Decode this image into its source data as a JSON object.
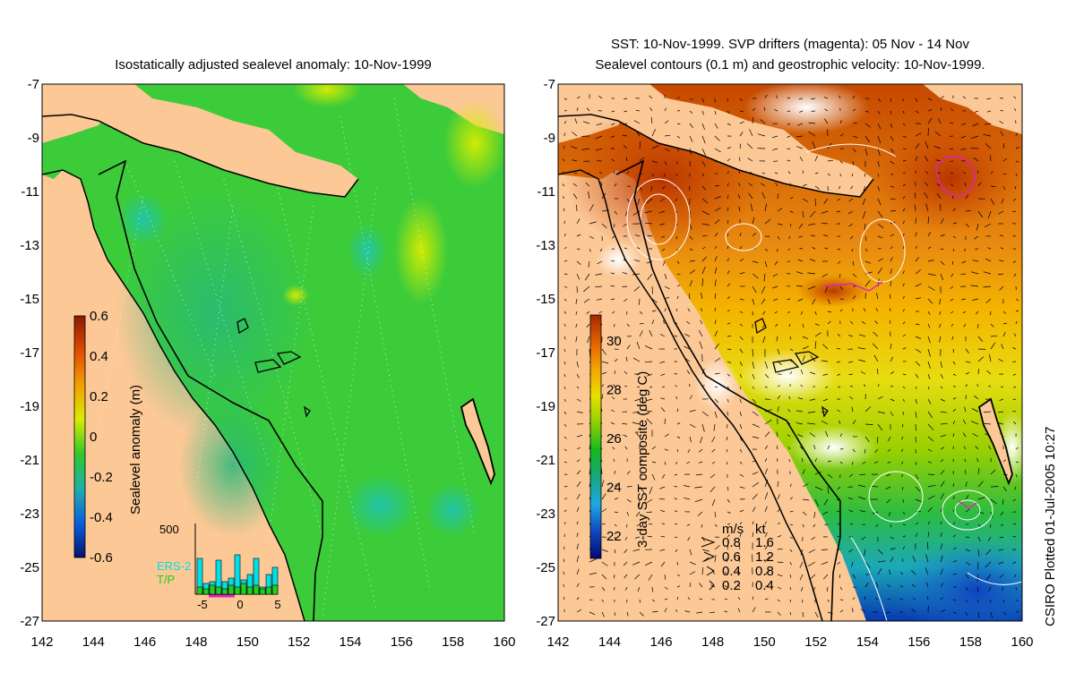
{
  "left_panel": {
    "title": "Isostatically adjusted sealevel anomaly: 10-Nov-1999",
    "colorbar": {
      "label": "Sealevel anomaly (m)",
      "ticks": [
        "0.6",
        "0.4",
        "0.2",
        "0",
        "-0.2",
        "-0.4",
        "-0.6"
      ],
      "colors": [
        "#8b1a00",
        "#e04a00",
        "#f3a000",
        "#d8ec00",
        "#2ec92a",
        "#1fb0a8",
        "#0c5fe0",
        "#00136e"
      ]
    },
    "histogram": {
      "ymax_label": "500",
      "x_ticks": [
        "-5",
        "0",
        "5"
      ],
      "legend_ers": "ERS-2",
      "legend_tp": "T/P",
      "ers_color": "#00e0e8",
      "tp_color": "#20d020"
    },
    "ocean_color": "#3ccc3a",
    "land_color": "#fbc896"
  },
  "right_panel": {
    "title_line1": "SST: 10-Nov-1999. SVP drifters (magenta): 05 Nov - 14 Nov",
    "title_line2": "Sealevel contours (0.1 m) and geostrophic velocity: 10-Nov-1999.",
    "colorbar": {
      "label": "3-day SST composite (deg C)",
      "ticks": [
        "30",
        "28",
        "26",
        "24",
        "22"
      ],
      "colors": [
        "#a42800",
        "#e46000",
        "#f4a400",
        "#e8e000",
        "#8ed000",
        "#16b820",
        "#14a880",
        "#1ca8e0",
        "#1048c0",
        "#000a70"
      ]
    },
    "velocity_legend": {
      "header_ms": "m/s",
      "header_kt": "kt",
      "rows": [
        {
          "ms": "0.8",
          "kt": "1.6"
        },
        {
          "ms": "0.6",
          "kt": "1.2"
        },
        {
          "ms": "0.4",
          "kt": "0.8"
        },
        {
          "ms": "0.2",
          "kt": "0.4"
        }
      ]
    },
    "drifter_color": "#e020c0"
  },
  "axes": {
    "y_ticks": [
      "-7",
      "-9",
      "-11",
      "-13",
      "-15",
      "-17",
      "-19",
      "-21",
      "-23",
      "-25",
      "-27"
    ],
    "x_ticks": [
      "142",
      "144",
      "146",
      "148",
      "150",
      "152",
      "154",
      "156",
      "158",
      "160"
    ]
  },
  "credit": "CSIRO Plotted 01-Jul-2005 10:27"
}
